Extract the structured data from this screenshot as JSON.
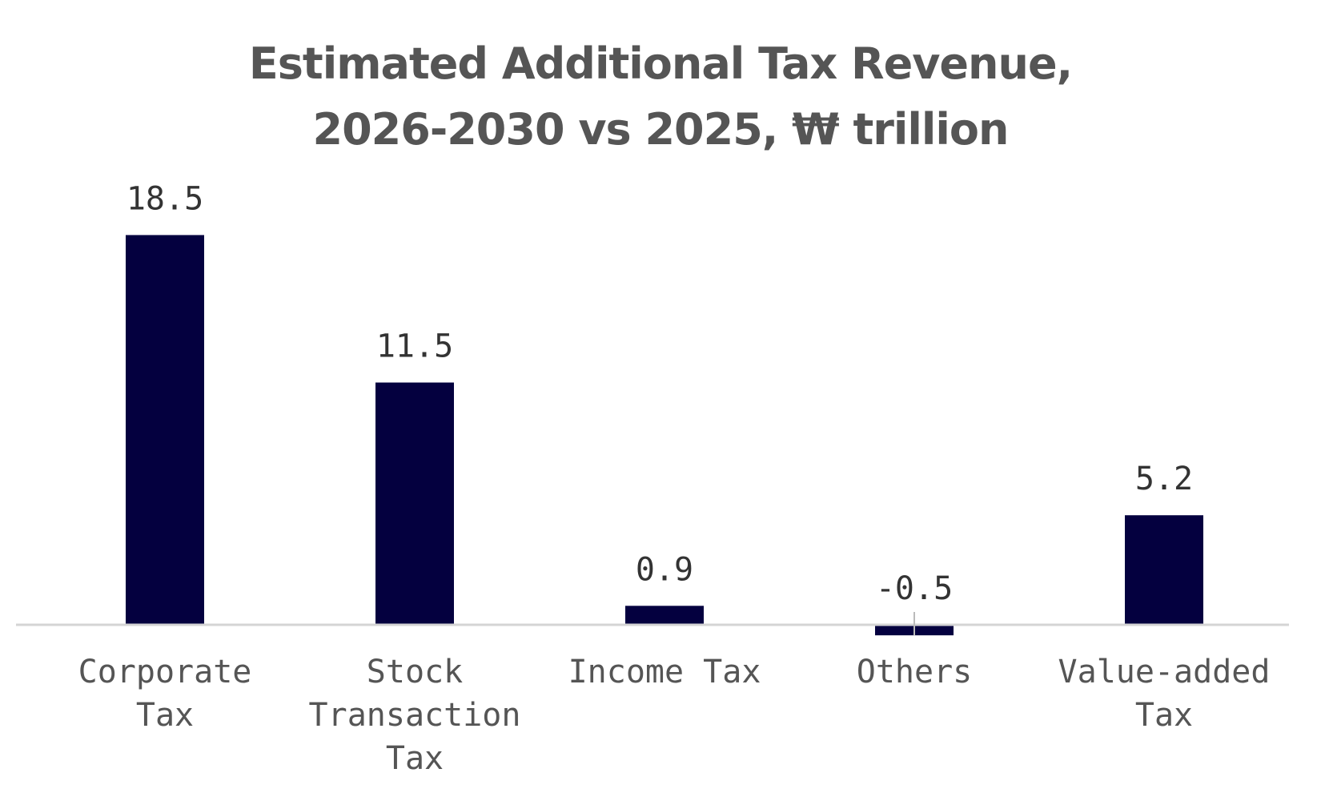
{
  "chart_data": {
    "type": "bar",
    "title_lines": [
      "Estimated Additional Tax Revenue,",
      "2026-2030 vs 2025, ₩ trillion"
    ],
    "categories": [
      [
        "Corporate",
        "Tax"
      ],
      [
        "Stock",
        "Transaction",
        "Tax"
      ],
      [
        "Income Tax"
      ],
      [
        "Others"
      ],
      [
        "Value-added",
        "Tax"
      ]
    ],
    "values": [
      18.5,
      11.5,
      0.9,
      -0.5,
      5.2
    ],
    "value_labels": [
      "18.5",
      "11.5",
      "0.9",
      "-0.5",
      "5.2"
    ],
    "xlabel": "",
    "ylabel": "",
    "ylim": [
      -0.5,
      18.5
    ],
    "grid": false,
    "legend": "none",
    "colors": {
      "bar": "#04003f",
      "title": "#555555",
      "axis": "#d4d4d4"
    }
  }
}
